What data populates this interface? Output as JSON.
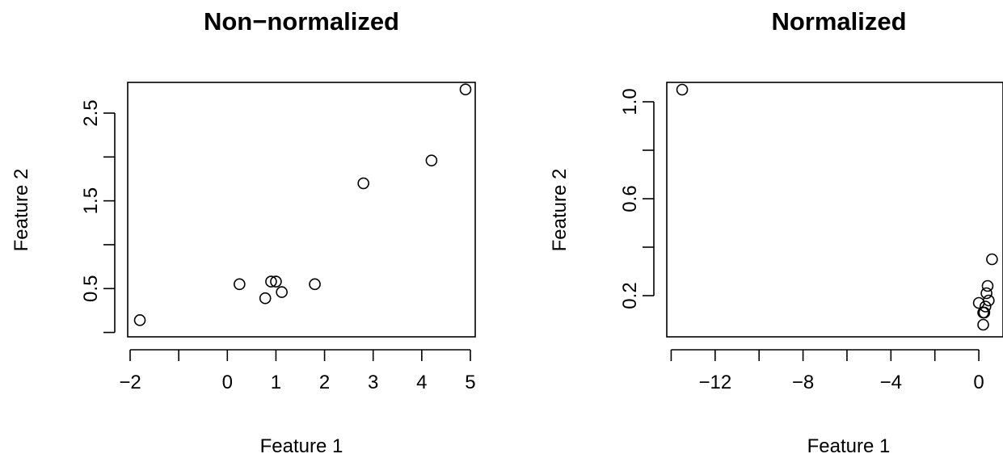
{
  "chart_data": [
    {
      "type": "scatter",
      "title": "Non−normalized",
      "xlabel": "Feature 1",
      "ylabel": "Feature 2",
      "xlim": [
        -2.05,
        5.1
      ],
      "ylim": [
        -0.05,
        2.85
      ],
      "xticks": [
        -2,
        -1,
        0,
        1,
        2,
        3,
        4,
        5
      ],
      "xtick_labels": [
        "−2",
        "",
        "0",
        "1",
        "2",
        "3",
        "4",
        "5"
      ],
      "yticks": [
        0,
        0.5,
        1.0,
        1.5,
        2.0,
        2.5
      ],
      "ytick_labels": [
        "",
        "0.5",
        "",
        "1.5",
        "",
        "2.5"
      ],
      "marker": "open-circle",
      "points": [
        {
          "x": -1.8,
          "y": 0.14
        },
        {
          "x": 0.25,
          "y": 0.55
        },
        {
          "x": 0.78,
          "y": 0.39
        },
        {
          "x": 0.9,
          "y": 0.58
        },
        {
          "x": 1.0,
          "y": 0.58
        },
        {
          "x": 1.12,
          "y": 0.46
        },
        {
          "x": 1.8,
          "y": 0.55
        },
        {
          "x": 2.8,
          "y": 1.7
        },
        {
          "x": 4.2,
          "y": 1.96
        },
        {
          "x": 4.9,
          "y": 2.77
        }
      ]
    },
    {
      "type": "scatter",
      "title": "Normalized",
      "xlabel": "Feature 1",
      "ylabel": "Feature 2",
      "xlim": [
        -14.2,
        1.1
      ],
      "ylim": [
        0.03,
        1.08
      ],
      "xticks": [
        -14,
        -12,
        -10,
        -8,
        -6,
        -4,
        -2,
        0
      ],
      "xtick_labels": [
        "",
        "−12",
        "",
        "−8",
        "",
        "−4",
        "",
        "0"
      ],
      "yticks": [
        0.2,
        0.4,
        0.6,
        0.8,
        1.0
      ],
      "ytick_labels": [
        "0.2",
        "",
        "0.6",
        "",
        "1.0"
      ],
      "marker": "open-circle",
      "points": [
        {
          "x": -13.5,
          "y": 1.05
        },
        {
          "x": 0.0,
          "y": 0.17
        },
        {
          "x": 0.2,
          "y": 0.13
        },
        {
          "x": 0.25,
          "y": 0.13
        },
        {
          "x": 0.2,
          "y": 0.08
        },
        {
          "x": 0.35,
          "y": 0.21
        },
        {
          "x": 0.4,
          "y": 0.24
        },
        {
          "x": 0.45,
          "y": 0.18
        },
        {
          "x": 0.3,
          "y": 0.155
        },
        {
          "x": 0.6,
          "y": 0.35
        }
      ]
    }
  ]
}
